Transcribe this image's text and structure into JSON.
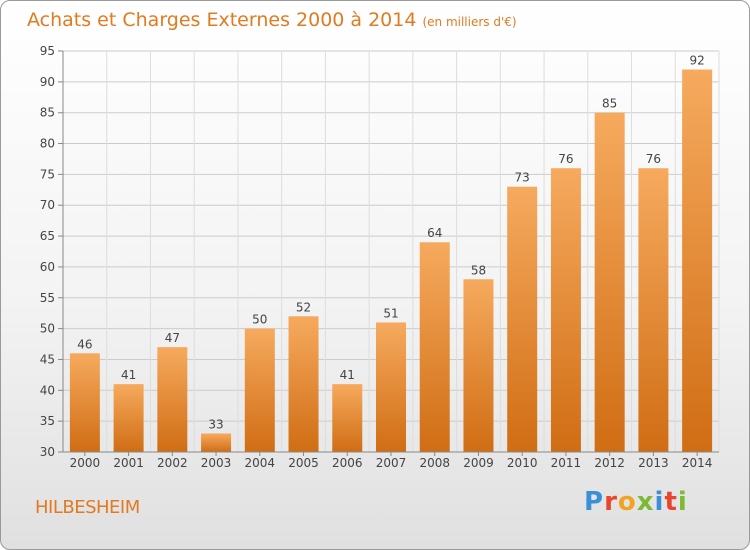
{
  "header": {
    "title": "Achats et Charges Externes 2000 à 2014",
    "unit": "(en milliers d'€)"
  },
  "footer": {
    "place": "HILBESHEIM",
    "logo_letters": [
      "P",
      "r",
      "o",
      "x",
      "i",
      "t",
      "i"
    ]
  },
  "colors": {
    "accent": "#e07b20",
    "bar_top": "#f6aa5e",
    "bar_bottom": "#d06d14",
    "logo": [
      "#3a8fd6",
      "#e8452c",
      "#f1a321",
      "#7cb935",
      "#3a8fd6",
      "#e8452c",
      "#7cb935"
    ]
  },
  "chart_data": {
    "type": "bar",
    "categories": [
      "2000",
      "2001",
      "2002",
      "2003",
      "2004",
      "2005",
      "2006",
      "2007",
      "2008",
      "2009",
      "2010",
      "2011",
      "2012",
      "2013",
      "2014"
    ],
    "values": [
      46,
      41,
      47,
      33,
      50,
      52,
      41,
      51,
      64,
      58,
      73,
      76,
      85,
      76,
      92
    ],
    "title": "Achats et Charges Externes 2000 à 2014",
    "ylim": [
      30,
      95
    ],
    "yticks": [
      30,
      35,
      40,
      45,
      50,
      55,
      60,
      65,
      70,
      75,
      80,
      85,
      90,
      95
    ],
    "grid": true,
    "data_labels": true
  }
}
